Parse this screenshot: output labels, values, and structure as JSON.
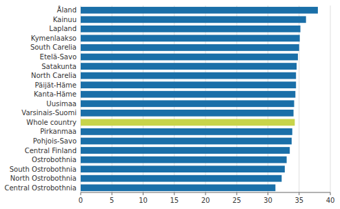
{
  "chart_data": {
    "type": "bar",
    "orientation": "horizontal",
    "categories": [
      "Åland",
      "Kainuu",
      "Lapland",
      "Kymenlaakso",
      "South Carelia",
      "Etelä-Savo",
      "Satakunta",
      "North Carelia",
      "Päijät-Häme",
      "Kanta-Häme",
      "Uusimaa",
      "Varsinais-Suomi",
      "Whole country",
      "Pirkanmaa",
      "Pohjois-Savo",
      "Central Finland",
      "Ostrobothnia",
      "South Ostrobothnia",
      "North Ostrobothnia",
      "Central Ostrobothnia"
    ],
    "values": [
      38.0,
      36.1,
      35.2,
      35.1,
      35.0,
      34.8,
      34.6,
      34.5,
      34.5,
      34.4,
      34.2,
      34.1,
      34.3,
      33.9,
      33.8,
      33.5,
      33.0,
      32.7,
      32.2,
      31.2
    ],
    "colors": [
      "#1a6fa8",
      "#1a6fa8",
      "#1a6fa8",
      "#1a6fa8",
      "#1a6fa8",
      "#1a6fa8",
      "#1a6fa8",
      "#1a6fa8",
      "#1a6fa8",
      "#1a6fa8",
      "#1a6fa8",
      "#1a6fa8",
      "#c8d44a",
      "#1a6fa8",
      "#1a6fa8",
      "#1a6fa8",
      "#1a6fa8",
      "#1a6fa8",
      "#1a6fa8",
      "#1a6fa8"
    ],
    "xlim": [
      0,
      40
    ],
    "xticks": [
      0,
      5,
      10,
      15,
      20,
      25,
      30,
      35,
      40
    ],
    "grid": true
  }
}
